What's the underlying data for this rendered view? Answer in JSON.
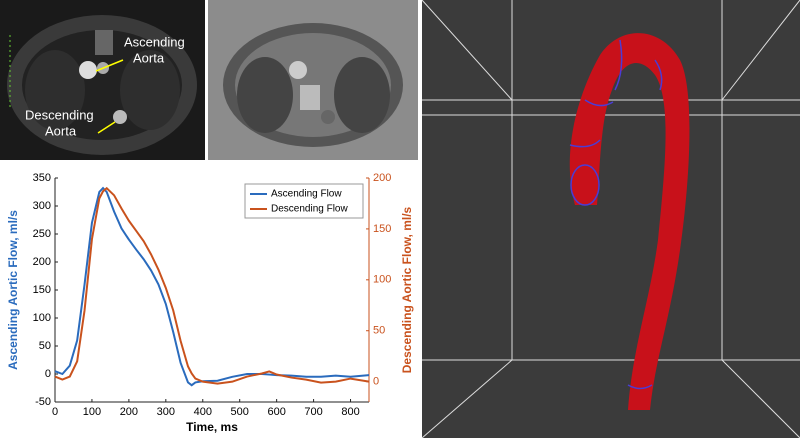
{
  "images": {
    "labels": [
      {
        "lines": [
          "Ascending",
          "Aorta"
        ]
      },
      {
        "lines": [
          "Descending",
          "Aorta"
        ]
      }
    ]
  },
  "chart_data": {
    "type": "line",
    "x": [
      0,
      20,
      40,
      60,
      80,
      100,
      120,
      130,
      140,
      160,
      180,
      200,
      220,
      240,
      260,
      280,
      300,
      320,
      340,
      360,
      370,
      380,
      400,
      440,
      480,
      520,
      560,
      580,
      600,
      640,
      680,
      720,
      760,
      800,
      850
    ],
    "series": [
      {
        "name": "Ascending Flow",
        "color": "#2a6bbd",
        "values": [
          5,
          0,
          15,
          60,
          160,
          270,
          325,
          332,
          325,
          290,
          260,
          240,
          222,
          205,
          185,
          160,
          125,
          75,
          20,
          -15,
          -20,
          -15,
          -13,
          -12,
          -5,
          0,
          0,
          -1,
          -2,
          -3,
          -5,
          -5,
          -3,
          -5,
          -2
        ]
      },
      {
        "name": "Descending Flow",
        "color": "#c9521d",
        "axis": "y2",
        "values": [
          5,
          2,
          5,
          20,
          70,
          140,
          180,
          187,
          190,
          183,
          170,
          158,
          148,
          138,
          125,
          110,
          92,
          70,
          40,
          15,
          8,
          3,
          0,
          -2,
          0,
          5,
          8,
          10,
          7,
          4,
          2,
          -1,
          0,
          3,
          0
        ]
      }
    ],
    "xlabel": "Time, ms",
    "ylabel": "Ascending Aortic Flow, ml/s",
    "y2label": "Descending Aortic Flow, ml/s",
    "xlim": [
      0,
      850
    ],
    "xticks": [
      0,
      100,
      200,
      300,
      400,
      500,
      600,
      700,
      800
    ],
    "ylim": [
      -50,
      350
    ],
    "yticks": [
      -50,
      0,
      50,
      100,
      150,
      200,
      250,
      300,
      350
    ],
    "y2lim": [
      -20,
      200
    ],
    "y2ticks": [
      0,
      50,
      100,
      150,
      200
    ],
    "legend": "upper-right"
  }
}
